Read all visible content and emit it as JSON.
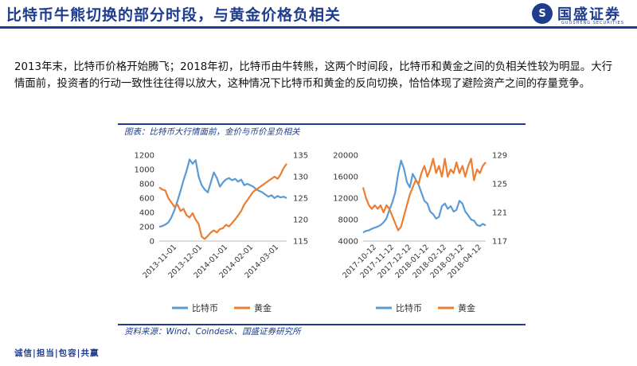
{
  "header": {
    "title": "比特币牛熊切换的部分时段，与黄金价格负相关"
  },
  "logo": {
    "name": "国盛证券",
    "subtitle": "GUOSHENG SECURITIES",
    "mark_icon": "guosheng-logo-icon"
  },
  "paragraph": "2013年末，比特币价格开始腾飞；2018年初，比特币由牛转熊，这两个时间段，比特币和黄金之间的负相关性较为明显。大行情面前，投资者的行动一致性往往得以放大，这种情况下比特币和黄金的反向切换，恰恰体现了避险资产之间的存量竞争。",
  "figure": {
    "caption": "图表：比特币大行情面前，金价与币价呈负相关",
    "source": "资料来源：Wind、Coindesk、国盛证券研究所"
  },
  "footer": "诚信|担当|包容|共赢",
  "colors": {
    "btc": "#5b9bd5",
    "gold": "#ed7d31",
    "brand": "#1f3d8c"
  },
  "chart_data": [
    {
      "type": "line",
      "x_ticks": [
        "2013-11-01",
        "2013-12-01",
        "2014-01-01",
        "2014-02-01",
        "2014-03-01"
      ],
      "y_left": {
        "ticks": [
          0,
          200,
          400,
          600,
          800,
          1000,
          1200
        ],
        "range": [
          0,
          1200
        ]
      },
      "y_right": {
        "ticks": [
          115,
          120,
          125,
          130,
          135
        ],
        "range": [
          115,
          135
        ]
      },
      "legend_position": "bottom",
      "series": [
        {
          "name": "比特币",
          "axis": "left",
          "color": "#5b9bd5",
          "values": [
            200,
            210,
            230,
            260,
            330,
            430,
            560,
            700,
            850,
            980,
            1140,
            1080,
            1130,
            900,
            780,
            720,
            680,
            820,
            960,
            880,
            760,
            820,
            860,
            880,
            850,
            870,
            830,
            860,
            780,
            800,
            780,
            760,
            720,
            700,
            680,
            650,
            620,
            640,
            600,
            630,
            610,
            620,
            600
          ]
        },
        {
          "name": "黄金",
          "axis": "right",
          "color": "#ed7d31",
          "values": [
            127.5,
            127,
            126.8,
            125,
            124,
            123,
            123.5,
            122,
            122.5,
            121,
            120.5,
            121.5,
            120,
            119,
            116,
            115.5,
            116.2,
            117,
            117.5,
            117,
            117.8,
            118,
            118.8,
            118.4,
            119.2,
            120,
            121,
            122,
            123.5,
            124.5,
            125.5,
            126.5,
            127,
            127.5,
            128,
            128.5,
            129,
            129.5,
            130,
            129.5,
            130.5,
            132,
            133
          ]
        }
      ]
    },
    {
      "type": "line",
      "x_ticks": [
        "2017-10-12",
        "2017-11-12",
        "2017-12-12",
        "2018-01-12",
        "2018-02-12",
        "2018-03-12",
        "2018-04-12"
      ],
      "y_left": {
        "ticks": [
          4000,
          8000,
          12000,
          16000,
          20000
        ],
        "range": [
          4000,
          20000
        ]
      },
      "y_right": {
        "ticks": [
          117,
          121,
          125,
          129
        ],
        "range": [
          117,
          129
        ]
      },
      "legend_position": "bottom",
      "series": [
        {
          "name": "比特币",
          "axis": "left",
          "color": "#5b9bd5",
          "values": [
            5600,
            5900,
            6000,
            6300,
            6500,
            6700,
            7000,
            7500,
            8200,
            9800,
            11200,
            13000,
            16500,
            19000,
            17500,
            15000,
            14000,
            16500,
            15500,
            14500,
            13000,
            11500,
            11000,
            9500,
            9000,
            8200,
            8500,
            10500,
            11000,
            10000,
            10500,
            9500,
            9800,
            11500,
            11000,
            9500,
            8800,
            8000,
            7800,
            7000,
            6800,
            7200,
            6900
          ]
        },
        {
          "name": "黄金",
          "axis": "right",
          "color": "#ed7d31",
          "values": [
            124.5,
            123,
            122,
            121.5,
            122,
            121.5,
            122,
            121,
            122,
            121.5,
            120.5,
            119.5,
            118.5,
            119,
            120.5,
            122,
            123.5,
            124.5,
            125.5,
            125,
            126.5,
            127.5,
            126,
            127,
            128.5,
            126.5,
            127.5,
            126,
            128.5,
            126,
            127,
            126.5,
            128,
            126.5,
            127.5,
            126,
            127.5,
            128.5,
            125.5,
            127,
            126.5,
            127.5,
            128
          ]
        }
      ]
    }
  ]
}
